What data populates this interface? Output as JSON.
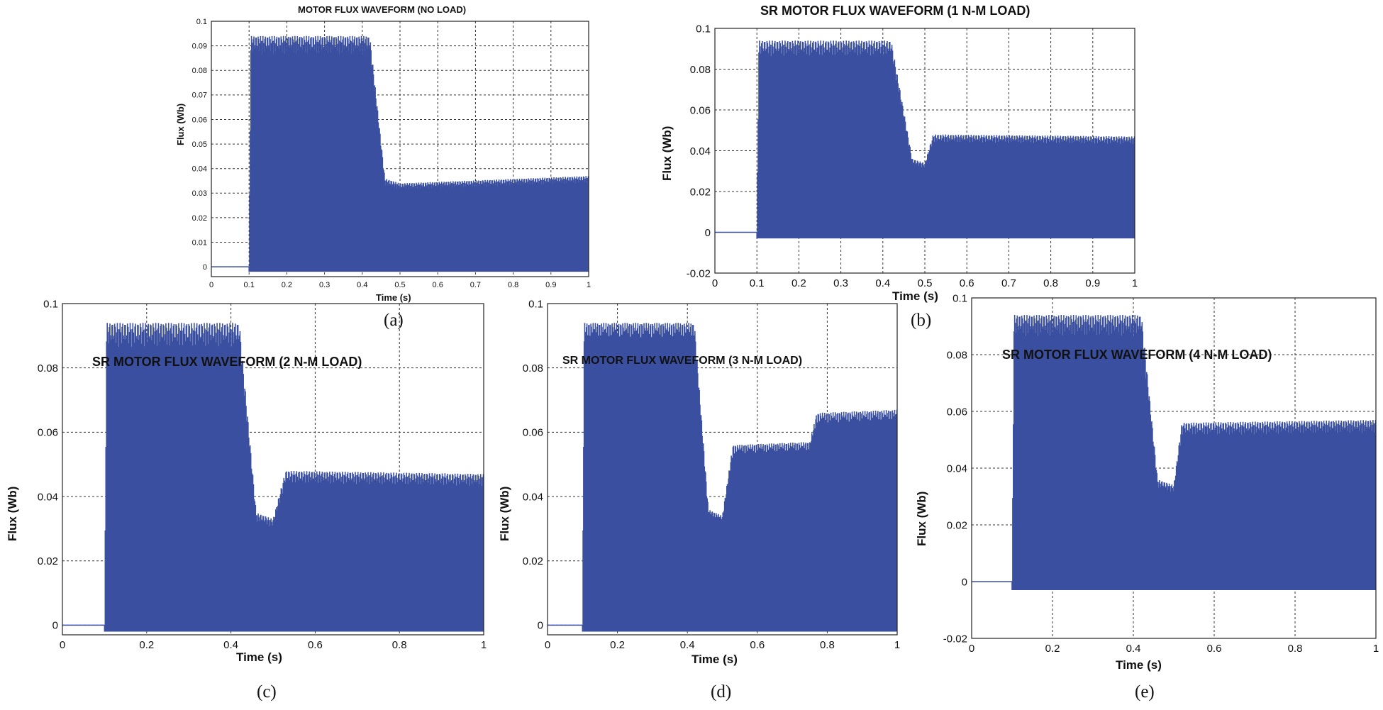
{
  "waveform_color": "#3a4fa0",
  "chart_data": [
    {
      "id": "a",
      "type": "line",
      "caption": "(a)",
      "title": "MOTOR FLUX WAVEFORM (NO LOAD)",
      "xlabel": "Time (s)",
      "ylabel": "Flux (Wb)",
      "xlim": [
        0,
        1
      ],
      "ylim": [
        -0.004,
        0.1
      ],
      "grid": true,
      "xticks": [
        0,
        0.1,
        0.2,
        0.3,
        0.4,
        0.5,
        0.6,
        0.7,
        0.8,
        0.9,
        1
      ],
      "xtick_labels": [
        "0",
        "0.1",
        "0.2",
        "0.3",
        "0.4",
        "0.5",
        "0.6",
        "0.7",
        "0.8",
        "0.9",
        "1"
      ],
      "yticks": [
        0,
        0.01,
        0.02,
        0.03,
        0.04,
        0.05,
        0.06,
        0.07,
        0.08,
        0.09,
        0.1
      ],
      "ytick_labels": [
        "0",
        "0.01",
        "0.02",
        "0.03",
        "0.04",
        "0.05",
        "0.06",
        "0.07",
        "0.08",
        "0.09",
        "0.1"
      ],
      "series": [
        {
          "name": "Flux",
          "envelope_x": [
            0,
            0.1,
            0.105,
            0.42,
            0.46,
            0.5,
            1
          ],
          "envelope_peak": [
            0,
            0,
            0.094,
            0.094,
            0.036,
            0.034,
            0.037
          ],
          "min": -0.002
        }
      ]
    },
    {
      "id": "b",
      "type": "line",
      "caption": "(b)",
      "title": "SR MOTOR FLUX WAVEFORM (1 N-M LOAD)",
      "xlabel": "Time (s)",
      "ylabel": "Flux (Wb)",
      "xlim": [
        0,
        1
      ],
      "ylim": [
        -0.02,
        0.1
      ],
      "grid": true,
      "xticks": [
        0,
        0.1,
        0.2,
        0.3,
        0.4,
        0.5,
        0.6,
        0.7,
        0.8,
        0.9,
        1
      ],
      "xtick_labels": [
        "0",
        "0.1",
        "0.2",
        "0.3",
        "0.4",
        "0.5",
        "0.6",
        "0.7",
        "0.8",
        "0.9",
        "1"
      ],
      "yticks": [
        -0.02,
        0,
        0.02,
        0.04,
        0.06,
        0.08,
        0.1
      ],
      "ytick_labels": [
        "-0.02",
        "0",
        "0.02",
        "0.04",
        "0.06",
        "0.08",
        "0.1"
      ],
      "series": [
        {
          "name": "Flux",
          "envelope_x": [
            0,
            0.1,
            0.105,
            0.42,
            0.47,
            0.5,
            0.52,
            1
          ],
          "envelope_peak": [
            0,
            0,
            0.094,
            0.094,
            0.036,
            0.034,
            0.048,
            0.047
          ],
          "min": -0.003
        }
      ]
    },
    {
      "id": "c",
      "type": "line",
      "caption": "(c)",
      "title": "SR MOTOR FLUX WAVEFORM (2 N-M LOAD)",
      "xlabel": "Time (s)",
      "ylabel": "Flux (Wb)",
      "xlim": [
        0,
        1
      ],
      "ylim": [
        -0.003,
        0.1
      ],
      "grid": true,
      "xticks": [
        0,
        0.2,
        0.4,
        0.6,
        0.8,
        1
      ],
      "xtick_labels": [
        "0",
        "0.2",
        "0.4",
        "0.6",
        "0.8",
        "1"
      ],
      "yticks": [
        0,
        0.02,
        0.04,
        0.06,
        0.08,
        0.1
      ],
      "ytick_labels": [
        "0",
        "0.02",
        "0.04",
        "0.06",
        "0.08",
        "0.1"
      ],
      "series": [
        {
          "name": "Flux",
          "envelope_x": [
            0,
            0.1,
            0.105,
            0.42,
            0.46,
            0.5,
            0.53,
            1
          ],
          "envelope_peak": [
            0,
            0,
            0.094,
            0.094,
            0.035,
            0.033,
            0.048,
            0.047
          ],
          "min": -0.002
        }
      ]
    },
    {
      "id": "d",
      "type": "line",
      "caption": "(d)",
      "title": "SR MOTOR FLUX  WAVEFORM (3 N-M LOAD)",
      "xlabel": "Time (s)",
      "ylabel": "Flux (Wb)",
      "xlim": [
        0,
        1
      ],
      "ylim": [
        -0.003,
        0.1
      ],
      "grid": true,
      "xticks": [
        0,
        0.2,
        0.4,
        0.6,
        0.8,
        1
      ],
      "xtick_labels": [
        "0",
        "0.2",
        "0.4",
        "0.6",
        "0.8",
        "1"
      ],
      "yticks": [
        0,
        0.02,
        0.04,
        0.06,
        0.08,
        0.1
      ],
      "ytick_labels": [
        "0",
        "0.02",
        "0.04",
        "0.06",
        "0.08",
        "0.1"
      ],
      "series": [
        {
          "name": "Flux",
          "envelope_x": [
            0,
            0.1,
            0.105,
            0.42,
            0.46,
            0.5,
            0.53,
            0.75,
            0.77,
            1
          ],
          "envelope_peak": [
            0,
            0,
            0.094,
            0.094,
            0.036,
            0.034,
            0.056,
            0.057,
            0.066,
            0.067
          ],
          "min": -0.002
        }
      ]
    },
    {
      "id": "e",
      "type": "line",
      "caption": "(e)",
      "title": "SR MOTOR FLUX WAVEFORM (4 N-M LOAD)",
      "xlabel": "Time (s)",
      "ylabel": "Flux (Wb)",
      "xlim": [
        0,
        1
      ],
      "ylim": [
        -0.02,
        0.1
      ],
      "grid": true,
      "xticks": [
        0,
        0.2,
        0.4,
        0.6,
        0.8,
        1
      ],
      "xtick_labels": [
        "0",
        "0.2",
        "0.4",
        "0.6",
        "0.8",
        "1"
      ],
      "yticks": [
        -0.02,
        0,
        0.02,
        0.04,
        0.06,
        0.08,
        0.1
      ],
      "ytick_labels": [
        "-0.02",
        "0",
        "0.02",
        "0.04",
        "0.06",
        "0.08",
        "0.1"
      ],
      "series": [
        {
          "name": "Flux",
          "envelope_x": [
            0,
            0.1,
            0.105,
            0.42,
            0.46,
            0.5,
            0.52,
            1
          ],
          "envelope_peak": [
            0,
            0,
            0.094,
            0.094,
            0.036,
            0.034,
            0.056,
            0.057
          ],
          "min": -0.003
        }
      ]
    }
  ]
}
